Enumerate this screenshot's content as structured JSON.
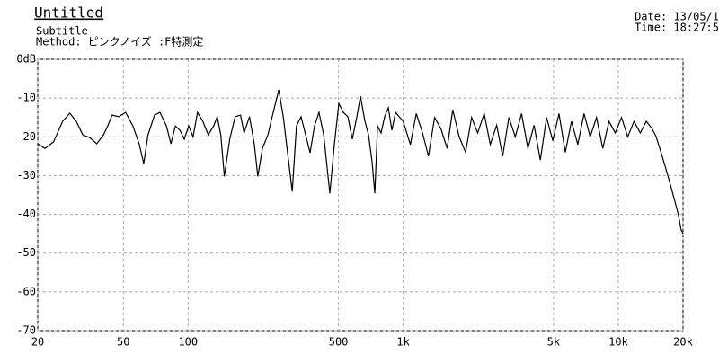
{
  "chart_data": {
    "type": "line",
    "title": "Untitled",
    "subtitle": "Subtitle",
    "method": "Method:  ピンクノイズ  :F特測定",
    "date": "Date: 13/05/1",
    "time": "Time: 18:27:5",
    "xscale": "log",
    "grid": true,
    "xlim": [
      20,
      20000
    ],
    "ylim": [
      -70,
      0
    ],
    "xticks": [
      20,
      50,
      100,
      500,
      {
        "value": 1000,
        "label": "1k"
      },
      {
        "value": 5000,
        "label": "5k"
      },
      {
        "value": 10000,
        "label": "10k"
      },
      {
        "value": 20000,
        "label": "20k"
      }
    ],
    "yticks": [
      {
        "value": 0,
        "label": "0dB"
      },
      -10,
      -20,
      -30,
      -40,
      -50,
      -60,
      -70
    ],
    "x": [
      20,
      21.6,
      23.7,
      26.1,
      28.2,
      30.2,
      32.4,
      34.9,
      37.6,
      40.4,
      42.3,
      44.3,
      47.6,
      51.2,
      55.4,
      59.2,
      62.2,
      65.1,
      69.8,
      74,
      79.3,
      83.2,
      87.3,
      91.6,
      96,
      100.7,
      105.5,
      110.6,
      117.1,
      124.1,
      131.5,
      136.6,
      141.9,
      147.4,
      156.2,
      165.5,
      175.3,
      182.1,
      193,
      203,
      211,
      221.6,
      235,
      246,
      264,
      277,
      290,
      305,
      319,
      335,
      352,
      369,
      387,
      406,
      427,
      456,
      479,
      502,
      527,
      553,
      580,
      609,
      633,
      664,
      690,
      717,
      738,
      760,
      789,
      820,
      853,
      886,
      921,
      1000,
      1080,
      1150,
      1230,
      1310,
      1400,
      1500,
      1600,
      1700,
      1820,
      1950,
      2080,
      2220,
      2380,
      2540,
      2720,
      2900,
      3100,
      3320,
      3550,
      3800,
      4060,
      4340,
      4640,
      4960,
      5300,
      5670,
      6060,
      6480,
      6930,
      7400,
      7920,
      8470,
      9050,
      9680,
      10350,
      11060,
      11830,
      12650,
      13500,
      14400,
      15000,
      15800,
      16600,
      17400,
      18200,
      19000,
      19600,
      20000
    ],
    "series": [
      {
        "color": "#000000",
        "values": [
          -21.8,
          -23,
          -21.3,
          -16,
          -13.9,
          -16,
          -19.5,
          -20.2,
          -21.8,
          -19.5,
          -17.2,
          -14.4,
          -14.8,
          -13.7,
          -17.2,
          -21.8,
          -26.9,
          -19.5,
          -14.4,
          -13.7,
          -17.2,
          -21.8,
          -17.2,
          -18.3,
          -20.6,
          -17.2,
          -20,
          -13.7,
          -16,
          -19.5,
          -17.2,
          -14.8,
          -19.5,
          -30.2,
          -20.6,
          -14.8,
          -14.4,
          -19,
          -14.8,
          -21.8,
          -30.2,
          -23,
          -19.5,
          -14.8,
          -7.9,
          -14.8,
          -24.1,
          -34.1,
          -17.2,
          -14.8,
          -19.5,
          -24.1,
          -17.2,
          -13.7,
          -19.5,
          -34.6,
          -21.8,
          -11.4,
          -13.7,
          -14.8,
          -20.6,
          -14.8,
          -9.5,
          -16,
          -19.5,
          -26.5,
          -34.6,
          -17.2,
          -19,
          -14.8,
          -12.5,
          -18.3,
          -13.7,
          -16,
          -22,
          -14,
          -19,
          -25,
          -15,
          -18,
          -23,
          -13,
          -20,
          -24,
          -15,
          -19,
          -14,
          -22,
          -17,
          -25,
          -15,
          -20,
          -14,
          -23,
          -17,
          -26,
          -15,
          -21,
          -14,
          -24,
          -16,
          -22,
          -14,
          -20,
          -15,
          -23,
          -16,
          -19,
          -15,
          -20,
          -16,
          -19,
          -16,
          -18,
          -20,
          -24,
          -28,
          -32,
          -36,
          -40,
          -44,
          -45
        ]
      }
    ]
  }
}
